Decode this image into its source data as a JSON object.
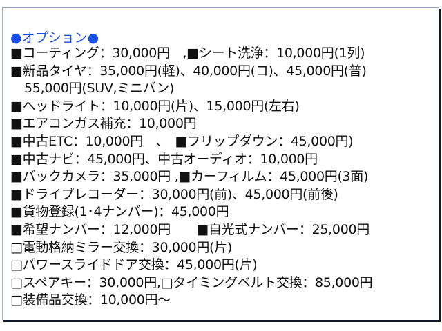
{
  "title": "●オプション●",
  "lines": [
    "■コーティング：30,000円　,■シート洗浄：10,000円(1列)",
    "■新品タイヤ：35,000円(軽)、40,000円(コ)、45,000円(普)",
    "55,000円(SUV,ミニバン)",
    "■ヘッドライト：10,000円(片)、15,000円(左右)",
    "■エアコンガス補充：10,000円",
    "■中古ETC：10,000円　、　■フリップダウン：45,000円)",
    "■中古ナビ：45,000円、中古オーディオ：10,000円",
    "■バックカメラ：35,000円 ,■カーフィルム：45,000円(3面)",
    "■ドライブレコーダー：30,000円(前)、45,000円(前後)",
    "■貨物登録(1･4ナンバー)：45,000円",
    "■希望ナンバー：12,000円　　■自光式ナンバー：25,000円",
    "□電動格納ミラー交換：30,000円(片)",
    "□パワースライドドア交換：45,000円(片)",
    "□スペアキー：30,000円,□タイミングベルト交換：85,000円",
    "□装備品交換：10,000円～"
  ],
  "colors": {
    "title": "#1a4fe8",
    "text": "#111111",
    "frame_border": "#8fa6c8"
  }
}
